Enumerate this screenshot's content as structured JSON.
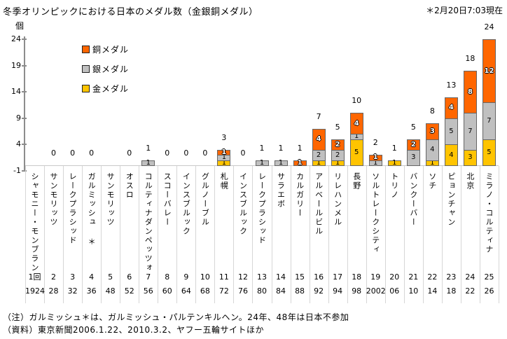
{
  "header": {
    "title": "冬季オリンピックにおける日本のメダル数（金銀銅メダル）",
    "note": "＊2月20日7:03現在"
  },
  "chart_data": {
    "type": "bar",
    "stacked": true,
    "title": "冬季オリンピックにおける日本のメダル数（金銀銅メダル）",
    "ylabel": "個",
    "ylim": [
      -1,
      24
    ],
    "yticks": [
      24,
      19,
      14,
      9,
      4,
      -1
    ],
    "grid": "zero-line-only",
    "legend_position": "upper-left-inside",
    "legend": [
      {
        "key": "bronze",
        "label": "銅メダル",
        "color": "#ff6600"
      },
      {
        "key": "silver",
        "label": "銀メダル",
        "color": "#c0c0c0"
      },
      {
        "key": "gold",
        "label": "金メダル",
        "color": "#ffc400"
      }
    ],
    "categories": [
      "シャモニー・モンブラン",
      "サンモリッツ",
      "レークプラシッド",
      "ガルミッシュ ＊",
      "サンモリッツ",
      "オスロ",
      "コルティナダンペッツォ",
      "スコーバレー",
      "インスブルック",
      "グルノーブル",
      "札幌",
      "インスブルック",
      "レークプラシッド",
      "サラエボ",
      "カルガリー",
      "アルベールビル",
      "リレハンメル",
      "長野",
      "ソルトレークシティ",
      "トリノ",
      "バンクーバー",
      "ソチ",
      "ピョンチャン",
      "北京",
      "ミラノ・コルティナ"
    ],
    "editions": [
      "1回",
      "2",
      "3",
      "4",
      "5",
      "6",
      "7",
      "8",
      "9",
      "10",
      "11",
      "12",
      "13",
      "14",
      "15",
      "16",
      "17",
      "18",
      "19",
      "20",
      "21",
      "22",
      "23",
      "24",
      "25"
    ],
    "years": [
      "1924",
      "28",
      "32",
      "36",
      "48",
      "52",
      "56",
      "60",
      "64",
      "68",
      "72",
      "76",
      "80",
      "84",
      "88",
      "92",
      "94",
      "98",
      "2002",
      "06",
      "10",
      "14",
      "18",
      "22",
      "26"
    ],
    "series": [
      {
        "key": "gold",
        "name": "金メダル",
        "values": [
          0,
          0,
          0,
          0,
          0,
          0,
          0,
          0,
          0,
          0,
          1,
          0,
          0,
          0,
          0,
          1,
          1,
          5,
          0,
          1,
          0,
          1,
          4,
          3,
          5
        ]
      },
      {
        "key": "silver",
        "name": "銀メダル",
        "values": [
          0,
          0,
          0,
          0,
          0,
          0,
          1,
          0,
          0,
          0,
          1,
          0,
          1,
          1,
          0,
          2,
          2,
          1,
          1,
          0,
          3,
          4,
          5,
          7,
          7
        ]
      },
      {
        "key": "bronze",
        "name": "銅メダル",
        "values": [
          0,
          0,
          0,
          0,
          0,
          0,
          0,
          0,
          0,
          0,
          1,
          0,
          0,
          0,
          1,
          4,
          2,
          4,
          1,
          0,
          2,
          3,
          4,
          8,
          12
        ]
      }
    ],
    "totals": [
      null,
      0,
      0,
      0,
      null,
      0,
      1,
      0,
      0,
      0,
      3,
      0,
      1,
      1,
      1,
      7,
      5,
      10,
      2,
      1,
      5,
      8,
      13,
      18,
      24
    ],
    "not_participated_indexes": [
      0,
      4
    ]
  },
  "footnotes": [
    "（注）ガルミッシュ＊は、ガルミッシュ・パルテンキルヘン。24年、48年は日本不参加",
    "（資料）東京新聞2006.1.22、2010.3.2、ヤフー五輪サイトほか"
  ]
}
